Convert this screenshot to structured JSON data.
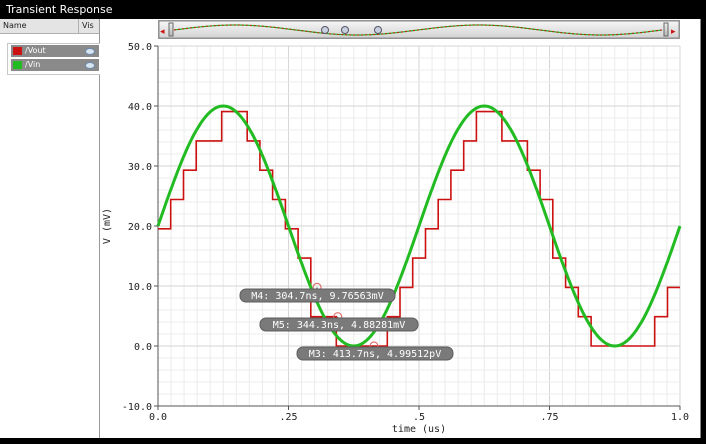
{
  "window": {
    "title": "Transient Response"
  },
  "sidebar": {
    "header_name": "Name",
    "header_vis": "Vis",
    "signals": [
      {
        "label": "/Vout",
        "color": "#cc1111",
        "visible_icon": "eye-icon"
      },
      {
        "label": "/Vin",
        "color": "#22bb22",
        "visible_icon": "eye-icon"
      }
    ]
  },
  "chart_data": {
    "type": "line",
    "xlabel": "time (us)",
    "ylabel": "V (mV)",
    "xlim": [
      0.0,
      1.0
    ],
    "ylim": [
      -10.0,
      50.0
    ],
    "x_ticks": [
      "0.0",
      ".25",
      ".5",
      ".75",
      "1.0"
    ],
    "y_ticks": [
      "50.0",
      "40.0",
      "30.0",
      "20.0",
      "10.0",
      "0.0",
      "-10.0"
    ],
    "grid": true,
    "series": [
      {
        "name": "/Vin",
        "color": "#22bb22",
        "kind": "sine",
        "offset_mV": 20.0,
        "amplitude_mV": 20.0,
        "period_us": 0.5
      },
      {
        "name": "/Vout",
        "color": "#cc1111",
        "kind": "quantized",
        "step_mV": 4.88281,
        "sample_period_us": 0.0244
      }
    ],
    "markers": [
      {
        "name": "M4",
        "x_us": 0.3047,
        "y_mV": 9.76563,
        "text": "M4: 304.7ns, 9.76563mV"
      },
      {
        "name": "M5",
        "x_us": 0.3443,
        "y_mV": 4.88281,
        "text": "M5: 344.3ns, 4.88281mV"
      },
      {
        "name": "M3",
        "x_us": 0.4137,
        "y_mV": 0.0,
        "text": "M3: 413.7ns, 4.99512pV"
      }
    ]
  },
  "overview_scroller": {
    "left_arrow": "◂",
    "right_arrow": "▸"
  }
}
